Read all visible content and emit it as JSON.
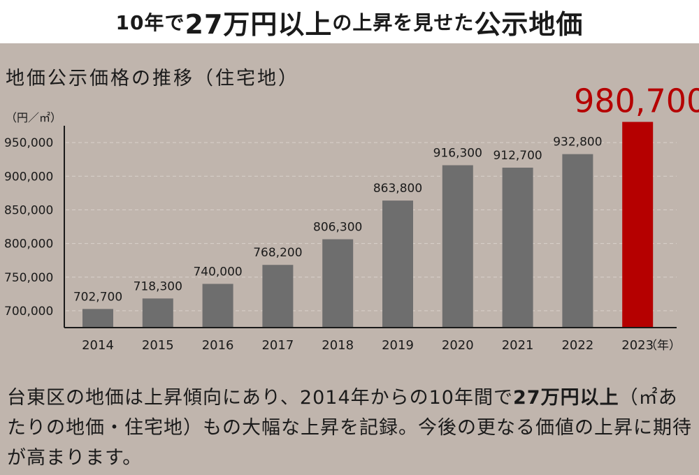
{
  "headline": {
    "part1": "10年で",
    "part2": "27万円以上",
    "part3": "の上昇を見せた",
    "part4": "公示地価"
  },
  "chart_data": {
    "type": "bar",
    "title": "地価公示価格の推移（住宅地）",
    "ylabel": "（円／㎡）",
    "xlabel": "（年）",
    "categories": [
      "2014",
      "2015",
      "2016",
      "2017",
      "2018",
      "2019",
      "2020",
      "2021",
      "2022",
      "2023"
    ],
    "values": [
      702700,
      718300,
      740000,
      768200,
      806300,
      863800,
      916300,
      912700,
      932800,
      980700
    ],
    "data_labels": [
      "702,700",
      "718,300",
      "740,000",
      "768,200",
      "806,300",
      "863,800",
      "916,300",
      "912,700",
      "932,800",
      "980,700"
    ],
    "yticks": [
      700000,
      750000,
      800000,
      850000,
      900000,
      950000
    ],
    "ytick_labels": [
      "700,000",
      "750,000",
      "800,000",
      "850,000",
      "900,000",
      "950,000"
    ],
    "ylim": [
      675000,
      975000
    ],
    "grid": true,
    "colors": {
      "bar": "#6e6e6e",
      "highlight": "#b50000",
      "axis": "#1a1a1a",
      "grid": "#d9d1cb"
    },
    "highlight_index": 9
  },
  "caption": {
    "t1": "台東区の地価は上昇傾向にあり、2014年からの10年間で",
    "b1": "27万円以上",
    "t2": "（㎡あたりの地価・住宅地）もの大幅な上昇を記録。今後の更なる価値の上昇に期待が高まります。"
  }
}
